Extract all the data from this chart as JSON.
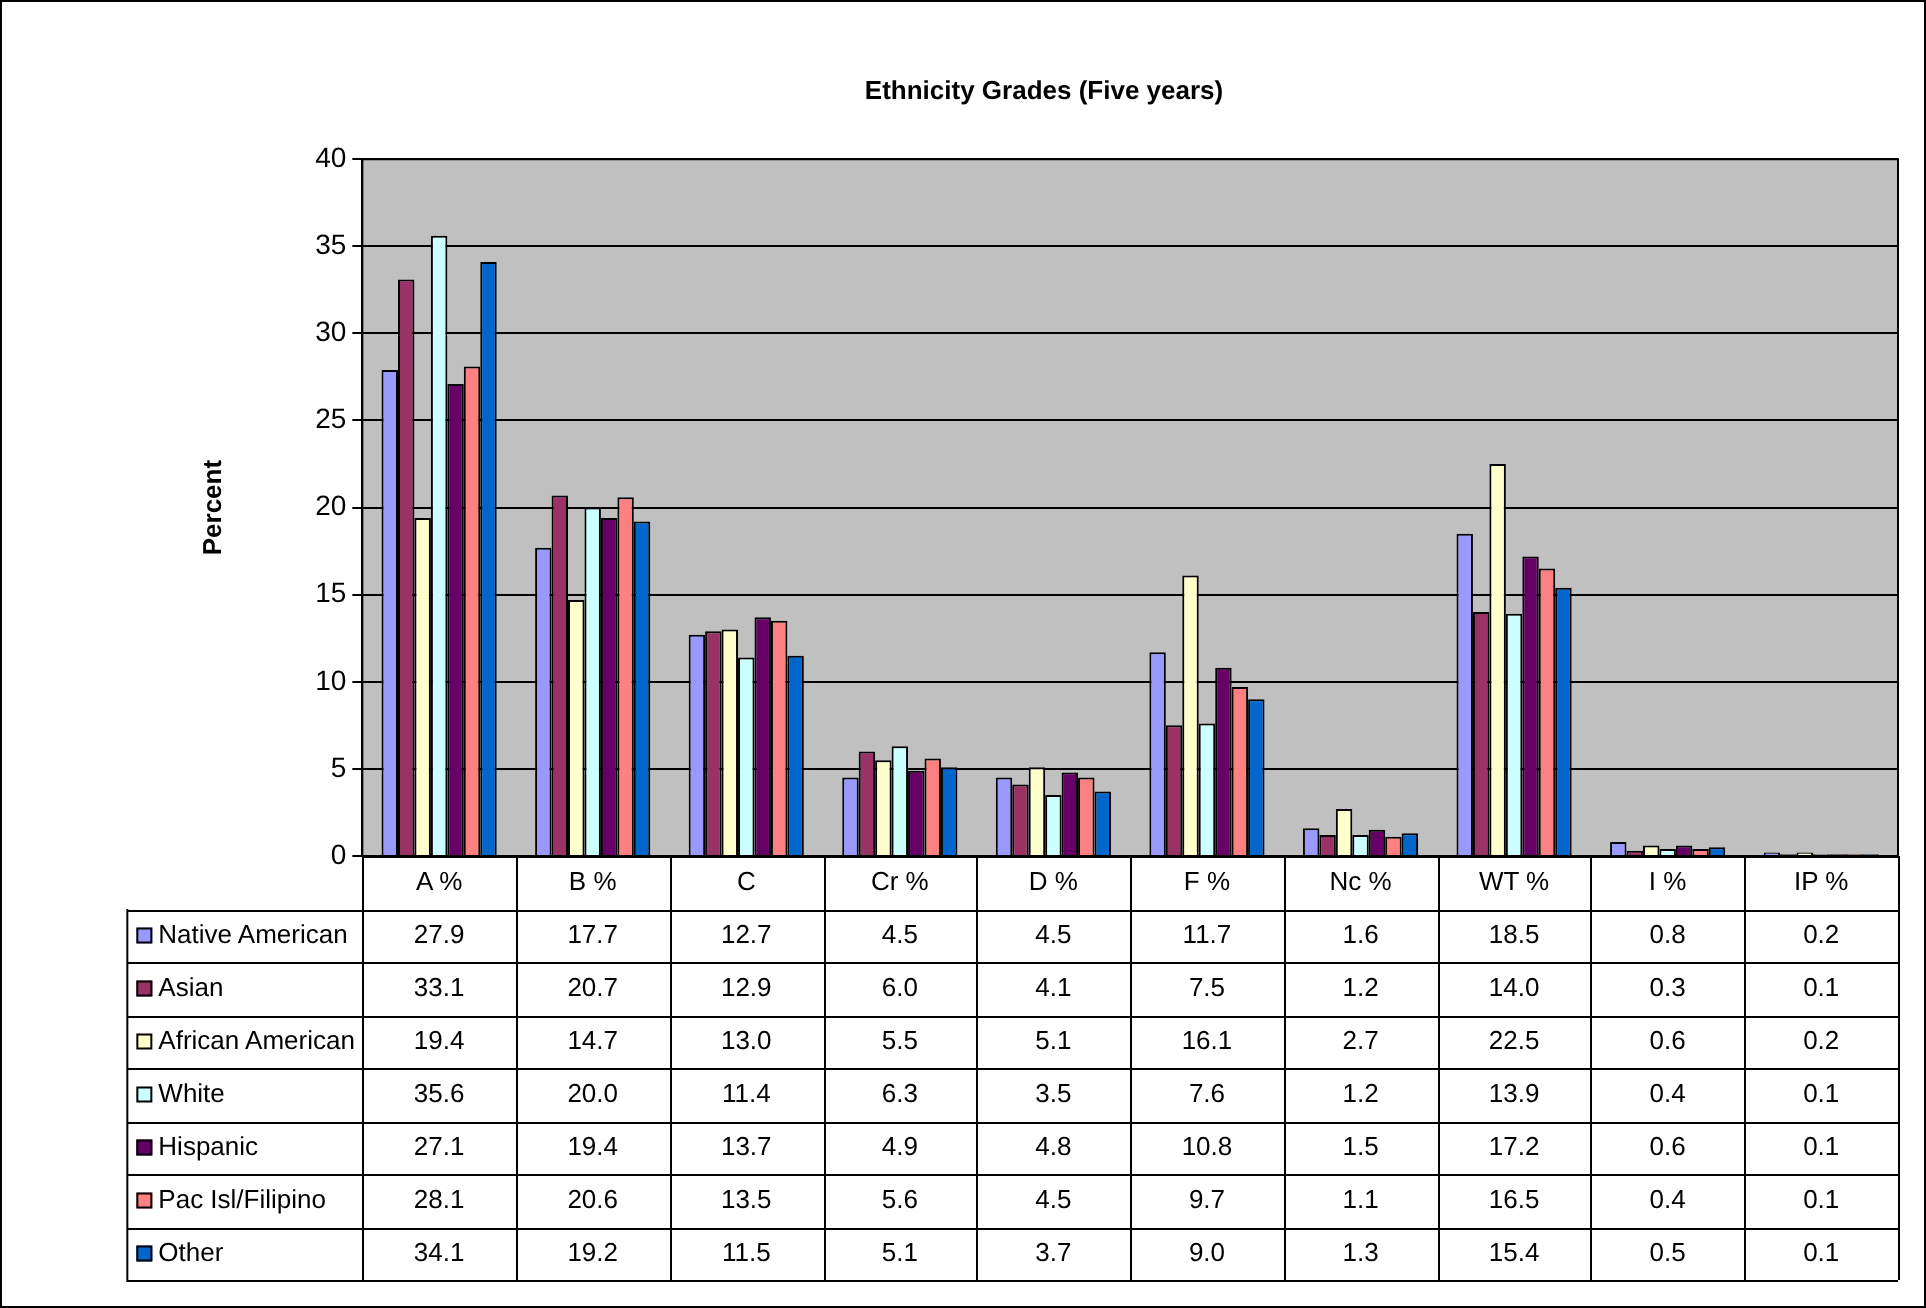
{
  "chart_data": {
    "type": "bar",
    "title": "Ethnicity Grades (Five years)",
    "ylabel": "Percent",
    "categories": [
      "A %",
      "B %",
      "C",
      "Cr %",
      "D %",
      "F %",
      "Nc %",
      "WT %",
      "I %",
      "IP %"
    ],
    "ylim": [
      0,
      40
    ],
    "yticks": [
      0,
      5,
      10,
      15,
      20,
      25,
      30,
      35,
      40
    ],
    "grid": "y",
    "legend": "bottom left",
    "series": [
      {
        "name": "Native American",
        "color": "#9999ff",
        "values": [
          27.9,
          17.7,
          12.7,
          4.5,
          4.5,
          11.7,
          1.6,
          18.5,
          0.8,
          0.2
        ],
        "value_labels": [
          "27.9",
          "17.7",
          "12.7",
          "4.5",
          "4.5",
          "11.7",
          "1.6",
          "18.5",
          "0.8",
          "0.2"
        ]
      },
      {
        "name": "Asian",
        "color": "#993366",
        "values": [
          33.1,
          20.7,
          12.9,
          6.0,
          4.1,
          7.5,
          1.2,
          14.0,
          0.3,
          0.1
        ],
        "value_labels": [
          "33.1",
          "20.7",
          "12.9",
          "6.0",
          "4.1",
          "7.5",
          "1.2",
          "14.0",
          "0.3",
          "0.1"
        ]
      },
      {
        "name": "African American",
        "color": "#ffffcc",
        "values": [
          19.4,
          14.7,
          13.0,
          5.5,
          5.1,
          16.1,
          2.7,
          22.5,
          0.6,
          0.2
        ],
        "value_labels": [
          "19.4",
          "14.7",
          "13.0",
          "5.5",
          "5.1",
          "16.1",
          "2.7",
          "22.5",
          "0.6",
          "0.2"
        ]
      },
      {
        "name": "White",
        "color": "#ccffff",
        "values": [
          35.6,
          20.0,
          11.4,
          6.3,
          3.5,
          7.6,
          1.2,
          13.9,
          0.4,
          0.1
        ],
        "value_labels": [
          "35.6",
          "20.0",
          "11.4",
          "6.3",
          "3.5",
          "7.6",
          "1.2",
          "13.9",
          "0.4",
          "0.1"
        ]
      },
      {
        "name": "Hispanic",
        "color": "#660066",
        "values": [
          27.1,
          19.4,
          13.7,
          4.9,
          4.8,
          10.8,
          1.5,
          17.2,
          0.6,
          0.1
        ],
        "value_labels": [
          "27.1",
          "19.4",
          "13.7",
          "4.9",
          "4.8",
          "10.8",
          "1.5",
          "17.2",
          "0.6",
          "0.1"
        ]
      },
      {
        "name": "Pac Isl/Filipino",
        "color": "#ff8080",
        "values": [
          28.1,
          20.6,
          13.5,
          5.6,
          4.5,
          9.7,
          1.1,
          16.5,
          0.4,
          0.1
        ],
        "value_labels": [
          "28.1",
          "20.6",
          "13.5",
          "5.6",
          "4.5",
          "9.7",
          "1.1",
          "16.5",
          "0.4",
          "0.1"
        ]
      },
      {
        "name": "Other",
        "color": "#0066cc",
        "values": [
          34.1,
          19.2,
          11.5,
          5.1,
          3.7,
          9.0,
          1.3,
          15.4,
          0.5,
          0.1
        ],
        "value_labels": [
          "34.1",
          "19.2",
          "11.5",
          "5.1",
          "3.7",
          "9.0",
          "1.3",
          "15.4",
          "0.5",
          "0.1"
        ]
      }
    ]
  }
}
